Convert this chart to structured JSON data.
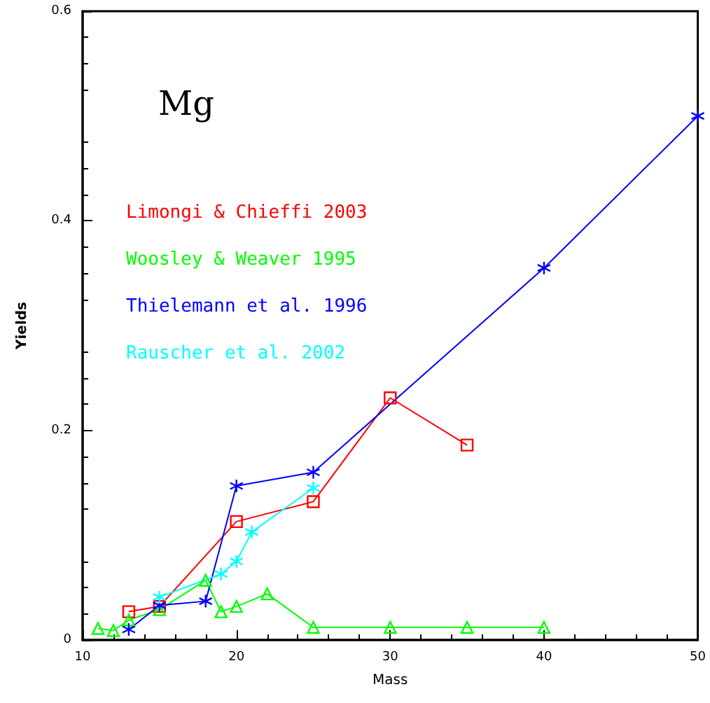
{
  "chart_data": {
    "type": "line",
    "xlabel": "Mass",
    "ylabel": "Yields",
    "xlim": [
      10,
      50
    ],
    "xticks": [
      10,
      20,
      30,
      40,
      50
    ],
    "ylim": [
      0,
      0.6
    ],
    "yticks": [
      0,
      0.2,
      0.4,
      0.6
    ],
    "grid": false,
    "legend": "top left",
    "annotations": [
      "Mg"
    ],
    "series": [
      {
        "name": "Limongi & Chieffi 2003",
        "color": "#ff0000",
        "marker": "square",
        "x": [
          13,
          15,
          20,
          25,
          30,
          35
        ],
        "values": [
          0.027,
          0.032,
          0.113,
          0.132,
          0.231,
          0.186
        ]
      },
      {
        "name": "Woosley & Weaver 1995",
        "color": "#00ff00",
        "marker": "triangle",
        "x": [
          11,
          12,
          13,
          15,
          18,
          19,
          20,
          22,
          25,
          30,
          35,
          40
        ],
        "values": [
          0.011,
          0.009,
          0.019,
          0.029,
          0.057,
          0.027,
          0.032,
          0.044,
          0.012,
          0.012,
          0.012,
          0.012
        ]
      },
      {
        "name": "Thielemann et al. 1996",
        "color": "#0000ff",
        "marker": "cross",
        "x": [
          13,
          15,
          18,
          20,
          25,
          40,
          50
        ],
        "values": [
          0.01,
          0.033,
          0.037,
          0.147,
          0.16,
          0.355,
          0.5
        ]
      },
      {
        "name": "Rauscher et al. 2002",
        "color": "#00ffff",
        "marker": "cross",
        "x": [
          15,
          19,
          20,
          21,
          25
        ],
        "values": [
          0.041,
          0.063,
          0.075,
          0.103,
          0.145
        ]
      }
    ]
  }
}
